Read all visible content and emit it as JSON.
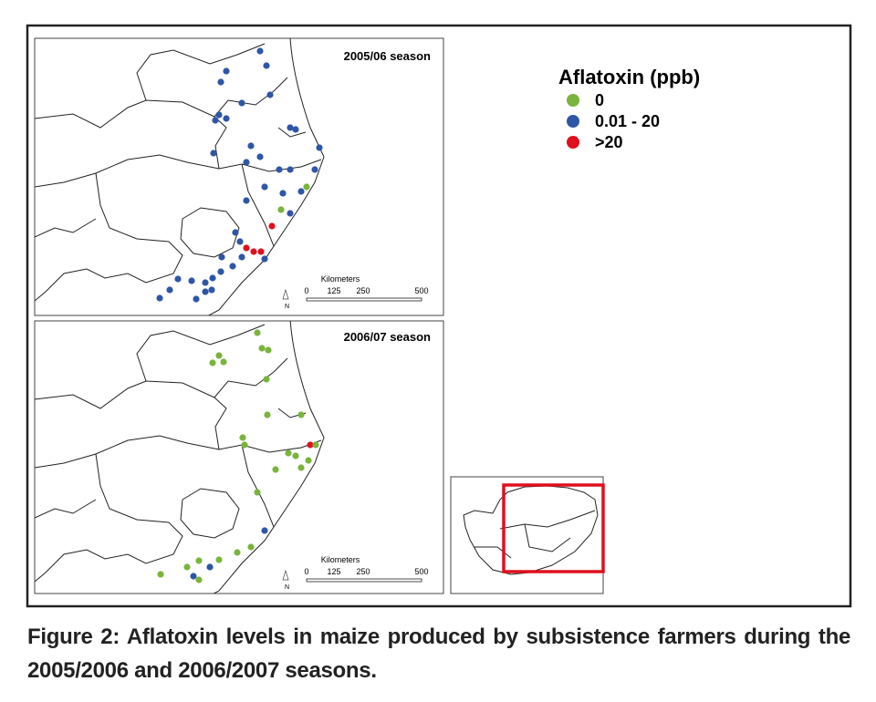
{
  "panels": [
    {
      "title": "2005/06 season",
      "scale": {
        "unit": "Kilometers",
        "ticks": [
          "0",
          "125",
          "250",
          "500"
        ]
      },
      "north": "N"
    },
    {
      "title": "2006/07 season",
      "scale": {
        "unit": "Kilometers",
        "ticks": [
          "0",
          "125",
          "250",
          "500"
        ]
      },
      "north": "N"
    }
  ],
  "legend": {
    "title": "Aflatoxin (ppb)",
    "items": [
      {
        "label": "0",
        "color": "#7ab43c"
      },
      {
        "label": "0.01 - 20",
        "color": "#2f56a6"
      },
      {
        "label": ">20",
        "color": "#e0101e"
      }
    ]
  },
  "caption": "Figure 2: Aflatoxin levels in maize produced by subsistence farmers during the 2005/2006 and 2006/2007 seasons."
}
